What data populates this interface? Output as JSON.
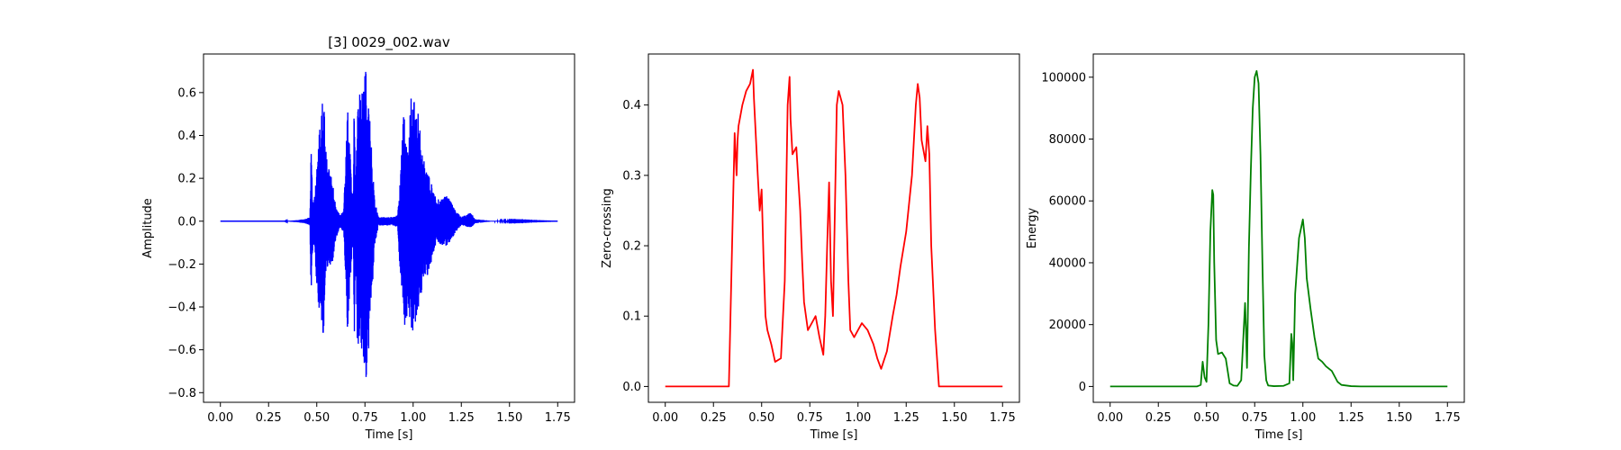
{
  "chart_data": [
    {
      "type": "line",
      "title": "[3] 0029_002.wav",
      "xlabel": "Time [s]",
      "ylabel": "Amplitude",
      "xlim": [
        -0.0875,
        1.8375
      ],
      "ylim": [
        -0.845,
        0.78
      ],
      "xticks": [
        "0.00",
        "0.25",
        "0.50",
        "0.75",
        "1.00",
        "1.25",
        "1.50",
        "1.75"
      ],
      "yticks": [
        "−0.8",
        "−0.6",
        "−0.4",
        "−0.2",
        "0.0",
        "0.2",
        "0.4",
        "0.6"
      ],
      "grid": false,
      "color": "#0000ff",
      "series": [
        {
          "envelope": {
            "x": [
              0.0,
              0.33,
              0.4,
              0.44,
              0.465,
              0.47,
              0.48,
              0.49,
              0.5,
              0.51,
              0.53,
              0.535,
              0.55,
              0.58,
              0.6,
              0.62,
              0.64,
              0.66,
              0.68,
              0.69,
              0.695,
              0.7,
              0.71,
              0.72,
              0.74,
              0.75,
              0.76,
              0.78,
              0.8,
              0.82,
              0.85,
              0.88,
              0.9,
              0.92,
              0.93,
              0.95,
              0.96,
              0.97,
              0.98,
              0.99,
              1.0,
              1.02,
              1.05,
              1.08,
              1.12,
              1.18,
              1.22,
              1.25,
              1.3,
              1.32,
              1.4,
              1.75
            ],
            "upper": [
              0.0,
              0.0,
              0.005,
              0.01,
              0.02,
              0.36,
              0.08,
              0.12,
              0.25,
              0.38,
              0.56,
              0.58,
              0.3,
              0.2,
              0.06,
              0.03,
              0.05,
              0.55,
              0.2,
              0.1,
              0.72,
              0.12,
              0.5,
              0.62,
              0.65,
              0.72,
              0.7,
              0.4,
              0.1,
              0.02,
              0.02,
              0.02,
              0.02,
              0.03,
              0.15,
              0.55,
              0.4,
              0.3,
              0.45,
              0.6,
              0.56,
              0.55,
              0.3,
              0.22,
              0.1,
              0.12,
              0.05,
              0.02,
              0.04,
              0.01,
              0.002,
              0.0
            ],
            "lower": [
              0.0,
              0.0,
              -0.005,
              -0.01,
              -0.02,
              -0.4,
              -0.1,
              -0.15,
              -0.3,
              -0.42,
              -0.5,
              -0.55,
              -0.22,
              -0.2,
              -0.08,
              -0.03,
              -0.05,
              -0.52,
              -0.2,
              -0.1,
              -0.74,
              -0.12,
              -0.55,
              -0.6,
              -0.62,
              -0.74,
              -0.72,
              -0.45,
              -0.12,
              -0.02,
              -0.02,
              -0.02,
              -0.02,
              -0.03,
              -0.2,
              -0.4,
              -0.55,
              -0.42,
              -0.46,
              -0.5,
              -0.52,
              -0.44,
              -0.3,
              -0.25,
              -0.1,
              -0.12,
              -0.05,
              -0.02,
              -0.03,
              -0.01,
              -0.002,
              0.0
            ]
          }
        }
      ]
    },
    {
      "type": "line",
      "xlabel": "Time [s]",
      "ylabel": "Zero-crossing",
      "xlim": [
        -0.0875,
        1.8375
      ],
      "ylim": [
        -0.0225,
        0.4725
      ],
      "xticks": [
        "0.00",
        "0.25",
        "0.50",
        "0.75",
        "1.00",
        "1.25",
        "1.50",
        "1.75"
      ],
      "yticks": [
        "0.0",
        "0.1",
        "0.2",
        "0.3",
        "0.4"
      ],
      "grid": false,
      "color": "#ff0000",
      "series": [
        {
          "x": [
            0.0,
            0.33,
            0.345,
            0.36,
            0.37,
            0.375,
            0.38,
            0.4,
            0.42,
            0.44,
            0.455,
            0.46,
            0.48,
            0.49,
            0.5,
            0.51,
            0.52,
            0.53,
            0.55,
            0.57,
            0.6,
            0.62,
            0.635,
            0.645,
            0.65,
            0.66,
            0.68,
            0.7,
            0.71,
            0.72,
            0.74,
            0.76,
            0.78,
            0.8,
            0.82,
            0.83,
            0.84,
            0.85,
            0.86,
            0.87,
            0.88,
            0.89,
            0.9,
            0.92,
            0.935,
            0.95,
            0.96,
            0.98,
            1.0,
            1.02,
            1.05,
            1.08,
            1.1,
            1.12,
            1.15,
            1.18,
            1.2,
            1.22,
            1.25,
            1.28,
            1.3,
            1.31,
            1.32,
            1.33,
            1.35,
            1.36,
            1.37,
            1.38,
            1.4,
            1.42,
            1.45,
            1.75
          ],
          "y": [
            0.0,
            0.0,
            0.18,
            0.36,
            0.3,
            0.35,
            0.37,
            0.4,
            0.42,
            0.43,
            0.45,
            0.41,
            0.3,
            0.25,
            0.28,
            0.18,
            0.1,
            0.08,
            0.06,
            0.035,
            0.04,
            0.15,
            0.4,
            0.44,
            0.38,
            0.33,
            0.34,
            0.25,
            0.18,
            0.12,
            0.08,
            0.09,
            0.1,
            0.07,
            0.045,
            0.1,
            0.2,
            0.29,
            0.15,
            0.1,
            0.25,
            0.4,
            0.42,
            0.4,
            0.3,
            0.15,
            0.08,
            0.07,
            0.08,
            0.09,
            0.08,
            0.06,
            0.04,
            0.025,
            0.05,
            0.1,
            0.13,
            0.17,
            0.22,
            0.3,
            0.4,
            0.43,
            0.41,
            0.35,
            0.32,
            0.37,
            0.33,
            0.2,
            0.08,
            0.0,
            0.0,
            0.0
          ]
        }
      ]
    },
    {
      "type": "line",
      "xlabel": "Time [s]",
      "ylabel": "Energy",
      "xlim": [
        -0.0875,
        1.8375
      ],
      "ylim": [
        -5120,
        107500
      ],
      "xticks": [
        "0.00",
        "0.25",
        "0.50",
        "0.75",
        "1.00",
        "1.25",
        "1.50",
        "1.75"
      ],
      "yticks": [
        "0",
        "20000",
        "40000",
        "60000",
        "80000",
        "100000"
      ],
      "grid": false,
      "color": "#008000",
      "series": [
        {
          "x": [
            0.0,
            0.45,
            0.47,
            0.48,
            0.49,
            0.5,
            0.51,
            0.52,
            0.53,
            0.535,
            0.54,
            0.55,
            0.56,
            0.58,
            0.6,
            0.62,
            0.64,
            0.66,
            0.68,
            0.7,
            0.705,
            0.71,
            0.72,
            0.73,
            0.74,
            0.75,
            0.76,
            0.77,
            0.78,
            0.79,
            0.8,
            0.81,
            0.82,
            0.85,
            0.9,
            0.93,
            0.94,
            0.945,
            0.95,
            0.96,
            0.98,
            1.0,
            1.01,
            1.02,
            1.04,
            1.06,
            1.08,
            1.1,
            1.12,
            1.15,
            1.18,
            1.2,
            1.25,
            1.3,
            1.75
          ],
          "y": [
            0,
            0,
            500,
            8000,
            3000,
            1500,
            20000,
            50000,
            63500,
            62000,
            40000,
            15000,
            10500,
            11000,
            9000,
            1000,
            300,
            200,
            2000,
            27000,
            18000,
            6000,
            45000,
            70000,
            90000,
            100000,
            102000,
            98000,
            75000,
            40000,
            10000,
            2000,
            300,
            100,
            200,
            1000,
            17000,
            14000,
            2000,
            30000,
            48000,
            54000,
            48000,
            35000,
            25000,
            16000,
            9000,
            8000,
            6500,
            5000,
            1500,
            500,
            100,
            0,
            0
          ]
        }
      ]
    }
  ]
}
